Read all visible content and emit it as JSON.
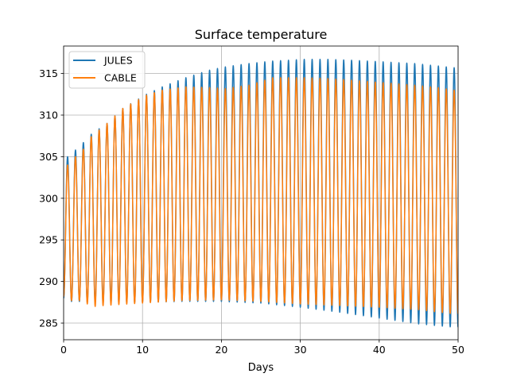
{
  "chart_data": {
    "type": "line",
    "title": "Surface temperature",
    "xlabel": "Days",
    "ylabel": "",
    "xlim": [
      0,
      50
    ],
    "ylim": [
      283,
      318.3
    ],
    "xticks": [
      "0",
      "10",
      "20",
      "30",
      "40",
      "50"
    ],
    "yticks": [
      "285",
      "290",
      "295",
      "300",
      "305",
      "310",
      "315"
    ],
    "grid": true,
    "legend_position": "upper-left",
    "series": [
      {
        "name": "JULES",
        "color": "#1f77b4",
        "period_days": 1,
        "maxima_by_day": {
          "day": [
            0.5,
            1.5,
            2.5,
            3.5,
            5.5,
            7.5,
            10.5,
            12.5,
            15.5,
            18.5,
            20.5,
            23.5,
            26.5,
            30.5,
            33.5,
            36.5,
            40.5,
            44.5,
            47.5,
            49.5
          ],
          "value": [
            305.0,
            305.8,
            306.7,
            307.7,
            309.0,
            310.8,
            312.5,
            313.4,
            314.5,
            315.4,
            315.8,
            316.2,
            316.5,
            316.7,
            316.7,
            316.6,
            316.4,
            316.2,
            315.9,
            315.7
          ]
        },
        "minima_by_day": {
          "day": [
            0.0,
            1.0,
            2.0,
            3.0,
            5.0,
            10.0,
            15.0,
            20.0,
            25.0,
            30.0,
            35.0,
            40.0,
            45.0,
            49.5
          ],
          "value": [
            288.0,
            287.6,
            287.6,
            287.5,
            287.4,
            287.5,
            287.6,
            287.6,
            287.4,
            286.9,
            286.3,
            285.6,
            284.9,
            284.5
          ]
        }
      },
      {
        "name": "CABLE",
        "color": "#ff7f0e",
        "period_days": 1,
        "maxima_by_day": {
          "day": [
            0.5,
            1.5,
            2.5,
            3.5,
            5.5,
            7.5,
            10.5,
            12.5,
            15.5,
            18.5,
            20.5,
            23.5,
            26.5,
            30.5,
            33.5,
            36.5,
            40.5,
            44.5,
            47.5,
            49.5
          ],
          "value": [
            304.0,
            305.0,
            305.9,
            307.4,
            309.0,
            310.8,
            312.4,
            313.0,
            313.4,
            313.3,
            313.2,
            313.6,
            314.5,
            314.5,
            314.4,
            314.2,
            313.9,
            313.6,
            313.3,
            313.0
          ]
        },
        "minima_by_day": {
          "day": [
            0.0,
            1.0,
            2.0,
            3.0,
            4.0,
            5.0,
            10.0,
            15.0,
            20.0,
            25.0,
            30.0,
            35.0,
            40.0,
            45.0,
            49.5
          ],
          "value": [
            288.2,
            287.7,
            287.7,
            287.3,
            287.0,
            287.1,
            287.4,
            287.7,
            287.8,
            287.6,
            287.3,
            287.1,
            286.9,
            286.6,
            286.1
          ]
        }
      }
    ]
  }
}
